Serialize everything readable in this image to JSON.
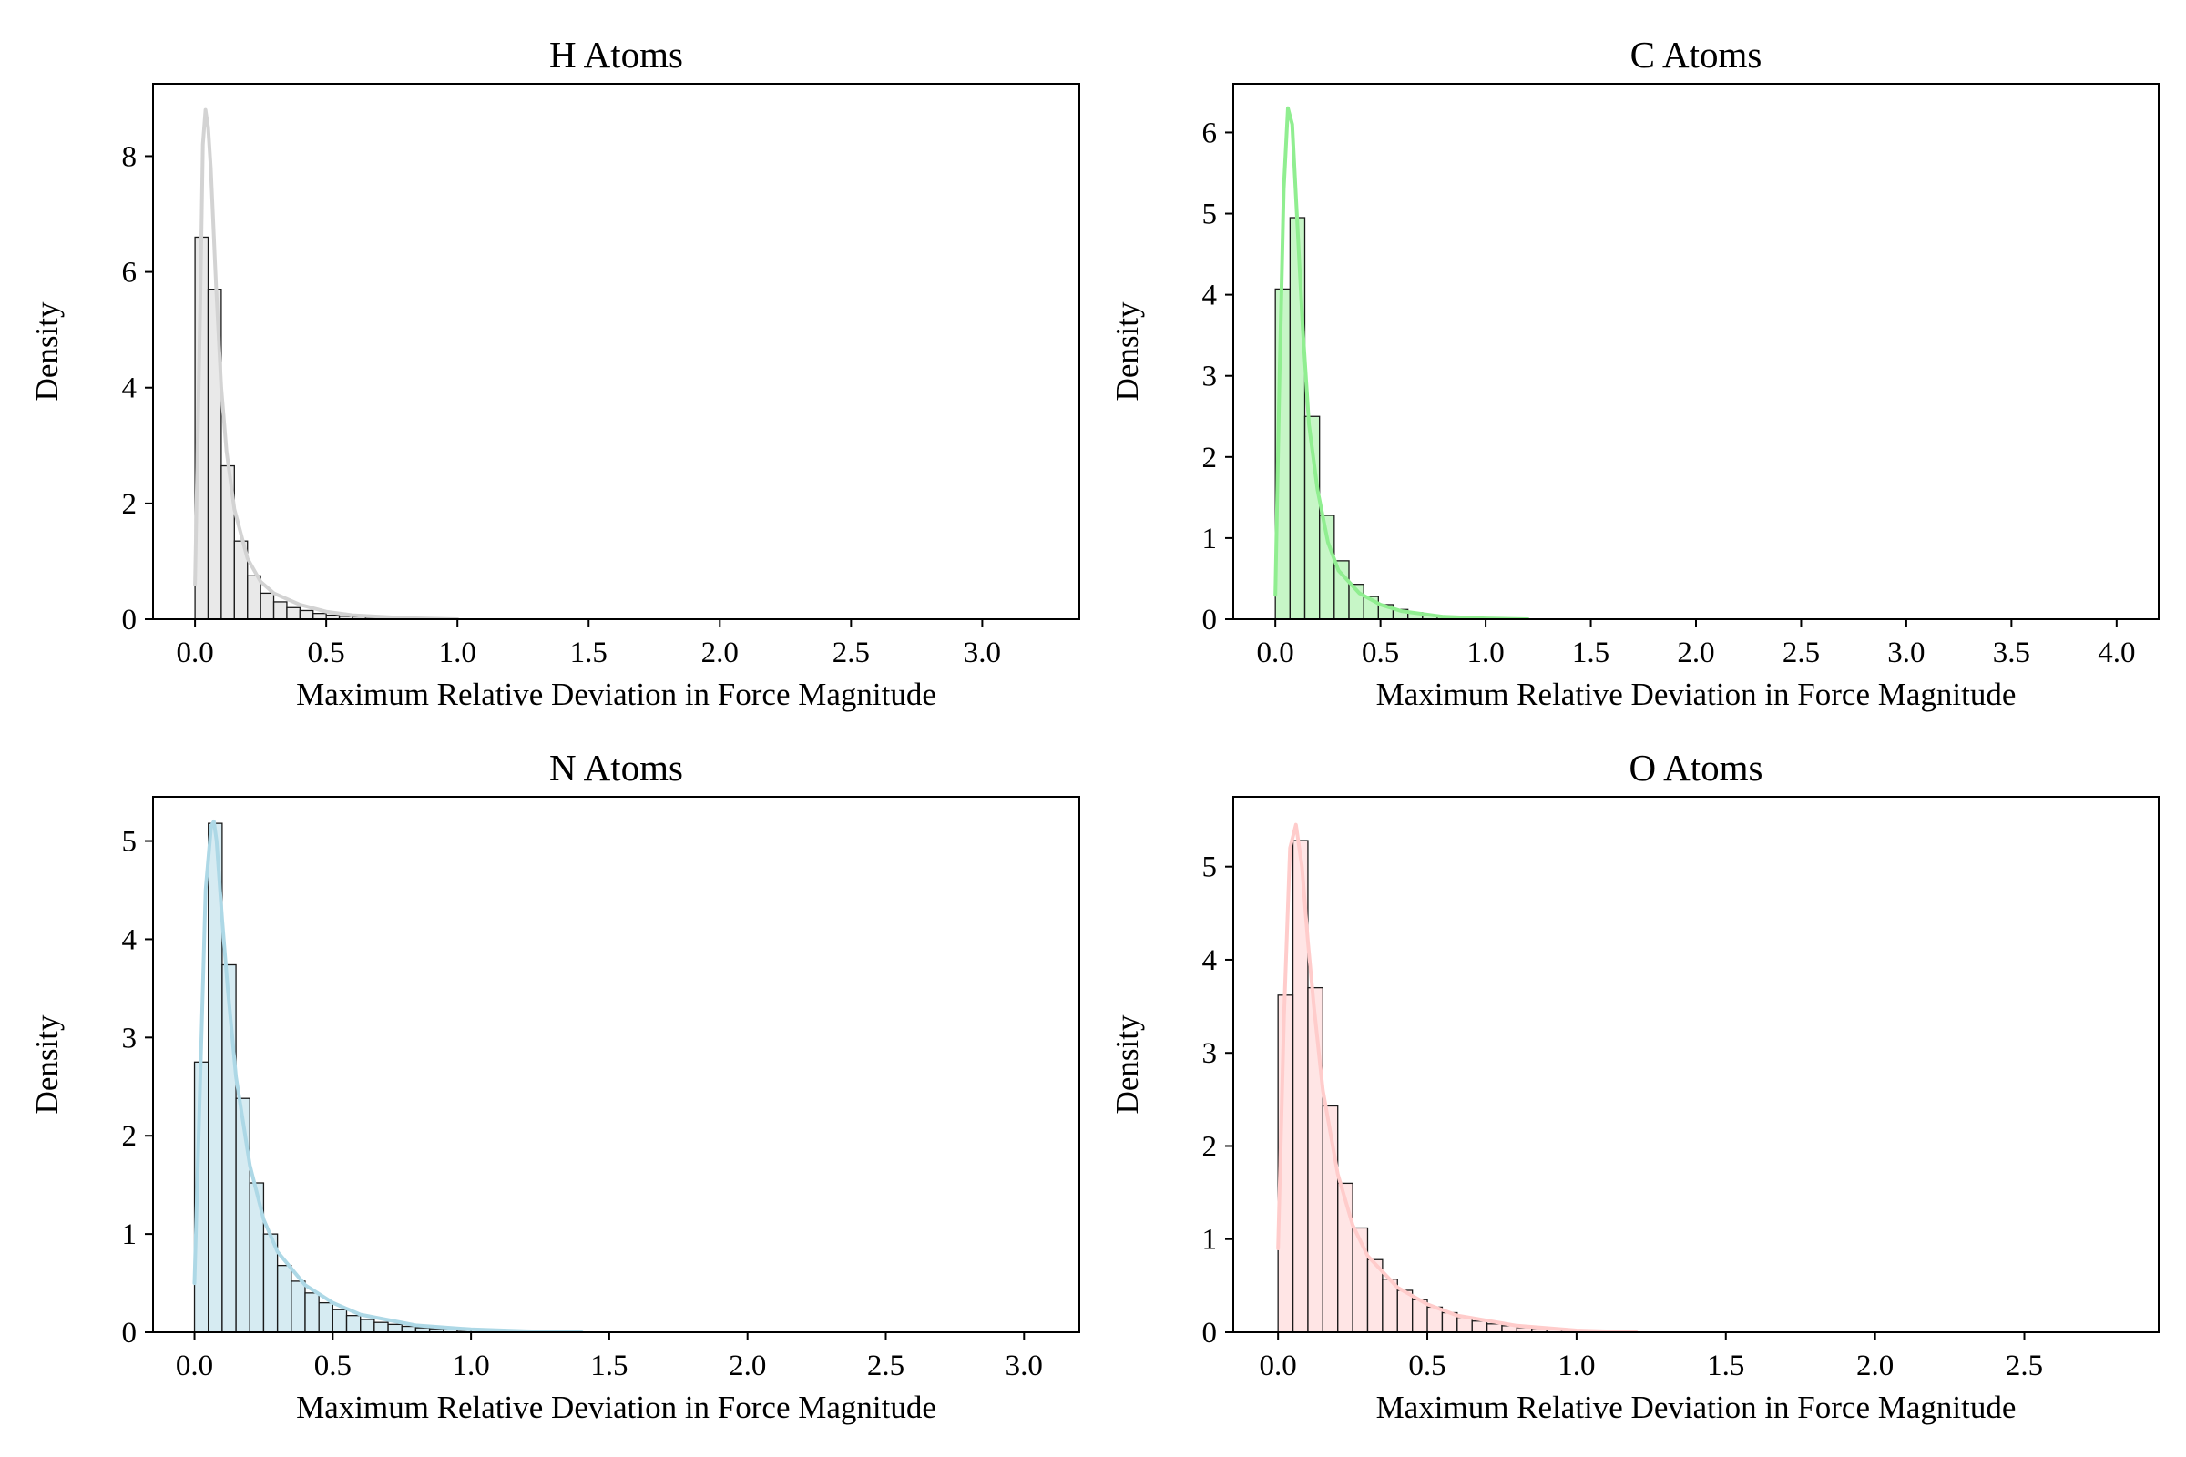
{
  "chart_data": [
    {
      "type": "bar",
      "title": "H Atoms",
      "xlabel": "Maximum Relative Deviation in Force Magnitude",
      "ylabel": "Density",
      "xlim": [
        -0.16,
        3.37
      ],
      "ylim": [
        0,
        9.25
      ],
      "xticks": [
        "0.0",
        "0.5",
        "1.0",
        "1.5",
        "2.0",
        "2.5",
        "3.0"
      ],
      "yticks": [
        "0",
        "2",
        "4",
        "6",
        "8"
      ],
      "color": "#d3d3d3",
      "bin_start": 0.0,
      "bin_width": 0.05,
      "values": [
        6.6,
        5.7,
        2.65,
        1.35,
        0.75,
        0.45,
        0.3,
        0.2,
        0.15,
        0.1,
        0.07,
        0.05,
        0.04,
        0.03,
        0.02,
        0.015,
        0.01,
        0.008,
        0.005,
        0.004
      ],
      "kde": {
        "x": [
          0.0,
          0.02,
          0.03,
          0.04,
          0.05,
          0.06,
          0.08,
          0.1,
          0.12,
          0.15,
          0.2,
          0.25,
          0.3,
          0.4,
          0.5,
          0.6,
          0.8,
          1.0
        ],
        "y": [
          0.6,
          5.5,
          8.2,
          8.8,
          8.5,
          7.8,
          5.8,
          4.0,
          2.9,
          1.9,
          1.05,
          0.65,
          0.45,
          0.25,
          0.13,
          0.07,
          0.02,
          0.0
        ]
      }
    },
    {
      "type": "bar",
      "title": "C Atoms",
      "xlabel": "Maximum Relative Deviation in Force Magnitude",
      "ylabel": "Density",
      "xlim": [
        -0.2,
        4.2
      ],
      "ylim": [
        0,
        6.6
      ],
      "xticks": [
        "0.0",
        "0.5",
        "1.0",
        "1.5",
        "2.0",
        "2.5",
        "3.0",
        "3.5",
        "4.0"
      ],
      "yticks": [
        "0",
        "1",
        "2",
        "3",
        "4",
        "5",
        "6"
      ],
      "color": "#90ee90",
      "bin_start": 0.0,
      "bin_width": 0.07,
      "values": [
        4.07,
        4.95,
        2.5,
        1.28,
        0.72,
        0.43,
        0.28,
        0.18,
        0.12,
        0.08,
        0.05,
        0.035,
        0.025,
        0.015,
        0.01
      ],
      "kde": {
        "x": [
          0.0,
          0.02,
          0.04,
          0.06,
          0.08,
          0.1,
          0.13,
          0.16,
          0.2,
          0.25,
          0.3,
          0.4,
          0.5,
          0.6,
          0.8,
          1.0,
          1.2
        ],
        "y": [
          0.3,
          3.0,
          5.3,
          6.3,
          6.1,
          5.1,
          3.6,
          2.4,
          1.6,
          0.95,
          0.6,
          0.32,
          0.18,
          0.1,
          0.03,
          0.01,
          0.0
        ]
      }
    },
    {
      "type": "bar",
      "title": "N Atoms",
      "xlabel": "Maximum Relative Deviation in Force Magnitude",
      "ylabel": "Density",
      "xlim": [
        -0.15,
        3.2
      ],
      "ylim": [
        0,
        5.45
      ],
      "xticks": [
        "0.0",
        "0.5",
        "1.0",
        "1.5",
        "2.0",
        "2.5",
        "3.0"
      ],
      "yticks": [
        "0",
        "1",
        "2",
        "3",
        "4",
        "5"
      ],
      "color": "#add8e6",
      "bin_start": 0.0,
      "bin_width": 0.05,
      "values": [
        2.75,
        5.18,
        3.74,
        2.38,
        1.52,
        1.0,
        0.68,
        0.52,
        0.4,
        0.3,
        0.23,
        0.17,
        0.13,
        0.1,
        0.08,
        0.06,
        0.045,
        0.035,
        0.025,
        0.02
      ],
      "kde": {
        "x": [
          0.0,
          0.02,
          0.04,
          0.06,
          0.07,
          0.08,
          0.1,
          0.12,
          0.15,
          0.2,
          0.25,
          0.3,
          0.4,
          0.5,
          0.6,
          0.8,
          1.0,
          1.2,
          1.4
        ],
        "y": [
          0.5,
          2.5,
          4.5,
          5.15,
          5.2,
          5.0,
          4.2,
          3.5,
          2.6,
          1.7,
          1.15,
          0.82,
          0.48,
          0.3,
          0.18,
          0.07,
          0.03,
          0.01,
          0.0
        ]
      }
    },
    {
      "type": "bar",
      "title": "O Atoms",
      "xlabel": "Maximum Relative Deviation in Force Magnitude",
      "ylabel": "Density",
      "xlim": [
        -0.15,
        2.95
      ],
      "ylim": [
        0,
        5.75
      ],
      "xticks": [
        "0.0",
        "0.5",
        "1.0",
        "1.5",
        "2.0",
        "2.5"
      ],
      "yticks": [
        "0",
        "1",
        "2",
        "3",
        "4",
        "5"
      ],
      "color": "#ffcccb",
      "bin_start": 0.0,
      "bin_width": 0.05,
      "values": [
        3.62,
        5.28,
        3.7,
        2.43,
        1.6,
        1.12,
        0.78,
        0.57,
        0.45,
        0.35,
        0.27,
        0.21,
        0.16,
        0.12,
        0.09,
        0.07,
        0.05,
        0.04,
        0.03,
        0.02
      ],
      "kde": {
        "x": [
          0.0,
          0.02,
          0.04,
          0.06,
          0.08,
          0.1,
          0.12,
          0.15,
          0.2,
          0.25,
          0.3,
          0.4,
          0.5,
          0.6,
          0.8,
          1.0,
          1.2
        ],
        "y": [
          0.9,
          3.4,
          5.2,
          5.45,
          5.0,
          4.2,
          3.5,
          2.6,
          1.7,
          1.15,
          0.82,
          0.48,
          0.3,
          0.18,
          0.07,
          0.02,
          0.0
        ]
      }
    }
  ]
}
